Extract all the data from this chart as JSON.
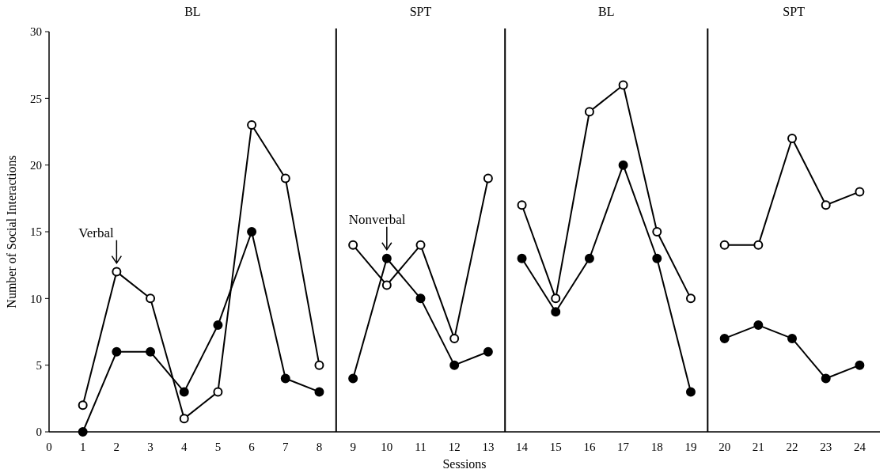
{
  "chart_data": {
    "type": "line",
    "xlabel": "Sessions",
    "ylabel": "Number of Social Interactions",
    "x": [
      1,
      2,
      3,
      4,
      5,
      6,
      7,
      8,
      8.5,
      9,
      10,
      11,
      12,
      13,
      13.5,
      14,
      15,
      16,
      17,
      18,
      19,
      19.5,
      20,
      21,
      22,
      23,
      24
    ],
    "series": [
      {
        "color": "#000000",
        "values": [
          2,
          12,
          10,
          1,
          3,
          23,
          19,
          5,
          null,
          14,
          11,
          14,
          7,
          19,
          null,
          17,
          10,
          24,
          26,
          15,
          10,
          null,
          14,
          14,
          22,
          17,
          18
        ]
      },
      {
        "color": "#000000",
        "values": [
          0,
          6,
          6,
          3,
          8,
          15,
          4,
          3,
          null,
          4,
          13,
          10,
          5,
          6,
          null,
          13,
          9,
          13,
          20,
          13,
          3,
          null,
          7,
          8,
          7,
          4,
          5
        ]
      }
    ],
    "xlim": [
      0,
      24.6
    ],
    "xticks": [
      0,
      1,
      2,
      3,
      4,
      5,
      6,
      7,
      8,
      9,
      10,
      11,
      12,
      13,
      14,
      15,
      16,
      17,
      18,
      19,
      20,
      21,
      22,
      23,
      24
    ],
    "ylim": [
      0,
      30
    ],
    "yticks": [
      0,
      5,
      10,
      15,
      20,
      25,
      30
    ],
    "grid": false,
    "marker": "circle",
    "line_style": "solid",
    "ref_lines": [
      {
        "axis": "x",
        "value": 8.5
      },
      {
        "axis": "x",
        "value": 13.5
      },
      {
        "axis": "x",
        "value": 19.5
      }
    ],
    "annotations": [
      "BL",
      "SPT",
      "BL",
      "SPT",
      {
        "text": "Verbal",
        "x": 2,
        "y": 12
      },
      {
        "text": "Nonverbal",
        "x": 10,
        "y": 13
      }
    ]
  }
}
